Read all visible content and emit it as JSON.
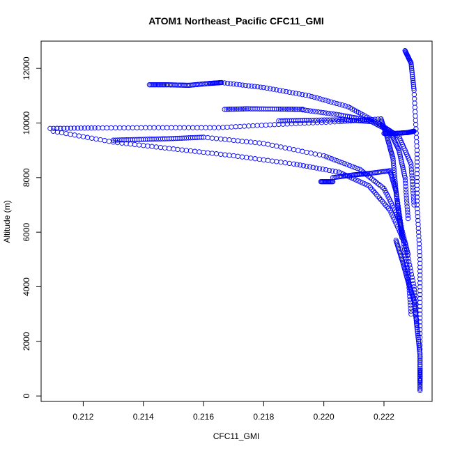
{
  "chart_data": {
    "type": "scatter",
    "title": "ATOM1 Northeast_Pacific CFC11_GMI",
    "xlabel": "CFC11_GMI",
    "ylabel": "Altitude (m)",
    "xlim": [
      0.2106,
      0.2236
    ],
    "ylim": [
      -200,
      13000
    ],
    "xticks": [
      0.212,
      0.214,
      0.216,
      0.218,
      0.22,
      0.222
    ],
    "xtick_labels": [
      "0.212",
      "0.214",
      "0.216",
      "0.218",
      "0.220",
      "0.222"
    ],
    "yticks": [
      0,
      2000,
      4000,
      6000,
      8000,
      10000,
      12000
    ],
    "ytick_labels": [
      "0",
      "2000",
      "4000",
      "6000",
      "8000",
      "10000",
      "12000"
    ],
    "grid": false,
    "marker": "open-circle",
    "color": "#0000ff",
    "series": [
      {
        "points": [
          [
            0.2227,
            12650
          ],
          [
            0.2229,
            12200
          ],
          [
            0.223,
            11200
          ],
          [
            0.2231,
            9000
          ],
          [
            0.2231,
            7000
          ],
          [
            0.2232,
            5000
          ],
          [
            0.2232,
            3000
          ],
          [
            0.2232,
            1000
          ],
          [
            0.2232,
            200
          ]
        ]
      },
      {
        "points": [
          [
            0.2142,
            11400
          ],
          [
            0.2148,
            11400
          ],
          [
            0.2155,
            11380
          ],
          [
            0.2162,
            11450
          ],
          [
            0.2166,
            11480
          ]
        ]
      },
      {
        "points": [
          [
            0.2166,
            11480
          ],
          [
            0.218,
            11300
          ],
          [
            0.2195,
            11000
          ],
          [
            0.2208,
            10600
          ],
          [
            0.2218,
            10000
          ],
          [
            0.2225,
            9500
          ],
          [
            0.2229,
            8500
          ],
          [
            0.223,
            7000
          ]
        ]
      },
      {
        "points": [
          [
            0.2167,
            10500
          ],
          [
            0.2175,
            10520
          ],
          [
            0.2185,
            10510
          ],
          [
            0.2193,
            10500
          ]
        ]
      },
      {
        "points": [
          [
            0.2193,
            10480
          ],
          [
            0.2205,
            10300
          ],
          [
            0.2215,
            10100
          ],
          [
            0.2222,
            9700
          ],
          [
            0.2225,
            9000
          ],
          [
            0.2227,
            8000
          ],
          [
            0.2228,
            6500
          ]
        ]
      },
      {
        "points": [
          [
            0.2109,
            9800
          ],
          [
            0.2125,
            9820
          ],
          [
            0.2145,
            9830
          ],
          [
            0.2165,
            9830
          ],
          [
            0.2185,
            9950
          ],
          [
            0.2205,
            10050
          ],
          [
            0.2219,
            10150
          ]
        ]
      },
      {
        "points": [
          [
            0.2219,
            10150
          ],
          [
            0.2221,
            9500
          ],
          [
            0.2223,
            8700
          ],
          [
            0.2224,
            7500
          ],
          [
            0.2226,
            6000
          ],
          [
            0.2228,
            4500
          ],
          [
            0.2229,
            3000
          ]
        ]
      },
      {
        "points": [
          [
            0.211,
            9700
          ],
          [
            0.213,
            9300
          ],
          [
            0.215,
            9050
          ],
          [
            0.217,
            8800
          ],
          [
            0.219,
            8500
          ],
          [
            0.2205,
            8200
          ],
          [
            0.2215,
            7700
          ],
          [
            0.2222,
            6800
          ],
          [
            0.2227,
            5600
          ],
          [
            0.223,
            4000
          ],
          [
            0.2231,
            2500
          ]
        ]
      },
      {
        "points": [
          [
            0.213,
            9370
          ],
          [
            0.214,
            9400
          ],
          [
            0.215,
            9430
          ],
          [
            0.216,
            9480
          ]
        ]
      },
      {
        "points": [
          [
            0.216,
            9480
          ],
          [
            0.218,
            9250
          ],
          [
            0.22,
            8800
          ],
          [
            0.2212,
            8300
          ],
          [
            0.222,
            7600
          ],
          [
            0.2225,
            6500
          ],
          [
            0.2228,
            5200
          ]
        ]
      },
      {
        "points": [
          [
            0.2199,
            7850
          ],
          [
            0.2203,
            7850
          ]
        ]
      },
      {
        "points": [
          [
            0.2203,
            8000
          ],
          [
            0.221,
            8100
          ],
          [
            0.2215,
            8150
          ],
          [
            0.2222,
            8250
          ]
        ]
      },
      {
        "points": [
          [
            0.2222,
            8250
          ],
          [
            0.2224,
            7500
          ],
          [
            0.2225,
            6600
          ],
          [
            0.2226,
            5800
          ]
        ]
      },
      {
        "points": [
          [
            0.222,
            9620
          ],
          [
            0.2224,
            9620
          ],
          [
            0.2228,
            9650
          ],
          [
            0.223,
            9700
          ]
        ]
      },
      {
        "points": [
          [
            0.2185,
            10080
          ],
          [
            0.2195,
            10100
          ],
          [
            0.2207,
            10120
          ],
          [
            0.2216,
            10050
          ]
        ]
      },
      {
        "points": [
          [
            0.2224,
            5700
          ],
          [
            0.2226,
            5000
          ],
          [
            0.2228,
            4200
          ],
          [
            0.223,
            3500
          ],
          [
            0.2231,
            2500
          ],
          [
            0.2232,
            1500
          ],
          [
            0.2232,
            500
          ]
        ]
      }
    ]
  }
}
